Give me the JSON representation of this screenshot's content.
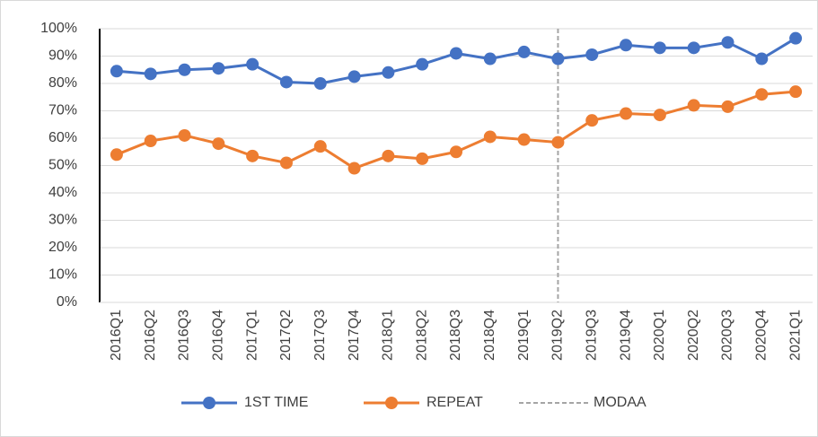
{
  "chart_data": {
    "type": "line",
    "categories": [
      "2016Q1",
      "2016Q2",
      "2016Q3",
      "2016Q4",
      "2017Q1",
      "2017Q2",
      "2017Q3",
      "2017Q4",
      "2018Q1",
      "2018Q2",
      "2018Q3",
      "2018Q4",
      "2019Q1",
      "2019Q2",
      "2019Q3",
      "2019Q4",
      "2020Q1",
      "2020Q2",
      "2020Q3",
      "2020Q4",
      "2021Q1"
    ],
    "series": [
      {
        "name": "1ST TIME",
        "color": "#4472c4",
        "values": [
          84.5,
          83.5,
          85,
          85.5,
          87,
          80.5,
          80,
          82.5,
          84,
          87,
          91,
          89,
          91.5,
          89,
          90.5,
          94,
          93,
          93,
          95,
          89,
          96.5
        ]
      },
      {
        "name": "REPEAT",
        "color": "#ed7d31",
        "values": [
          54,
          59,
          61,
          58,
          53.5,
          51,
          57,
          49,
          53.5,
          52.5,
          55,
          60.5,
          59.5,
          58.5,
          66.5,
          69,
          68.5,
          72,
          71.5,
          76,
          77
        ]
      }
    ],
    "reference_line": {
      "name": "MODAA",
      "at": "2019Q2",
      "color": "#a5a5a5",
      "style": "dashed"
    },
    "ylim": [
      0,
      100
    ],
    "yticks": [
      {
        "value": 0,
        "label": "0%"
      },
      {
        "value": 10,
        "label": "10%"
      },
      {
        "value": 20,
        "label": "20%"
      },
      {
        "value": 30,
        "label": "30%"
      },
      {
        "value": 40,
        "label": "40%"
      },
      {
        "value": 50,
        "label": "50%"
      },
      {
        "value": 60,
        "label": "60%"
      },
      {
        "value": 70,
        "label": "70%"
      },
      {
        "value": 80,
        "label": "80%"
      },
      {
        "value": 90,
        "label": "90%"
      },
      {
        "value": 100,
        "label": "100%"
      }
    ],
    "grid": true,
    "legend": "bottom"
  }
}
